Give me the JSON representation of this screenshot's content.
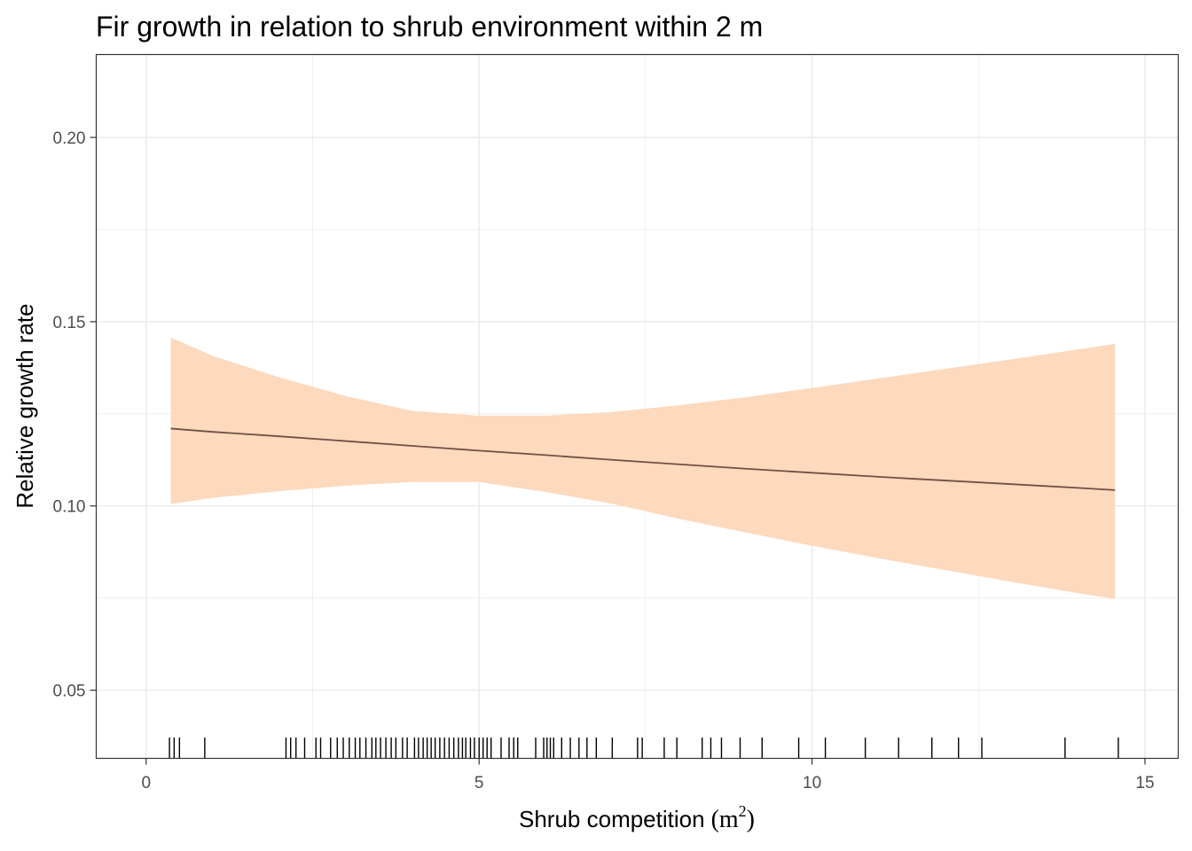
{
  "chart_data": {
    "type": "line",
    "title": "Fir growth in relation to shrub environment within 2 m",
    "xlabel": "Shrub competition",
    "xlabel_unit_open": "(",
    "xlabel_unit_base": "m",
    "xlabel_unit_sup": "2",
    "xlabel_unit_close": ")",
    "ylabel": "Relative growth rate",
    "xlim": [
      -0.75,
      15.5
    ],
    "ylim": [
      0.0315,
      0.2225
    ],
    "x_ticks": [
      0,
      5,
      10,
      15
    ],
    "x_tick_labels": [
      "0",
      "5",
      "10",
      "15"
    ],
    "y_ticks": [
      0.05,
      0.1,
      0.15,
      0.2
    ],
    "y_tick_labels": [
      "0.05",
      "0.10",
      "0.15",
      "0.20"
    ],
    "x_minor": [
      2.5,
      7.5,
      12.5
    ],
    "y_minor": [
      0.075,
      0.125,
      0.175
    ],
    "grid": true,
    "colors": {
      "ribbon": "#fdd9bd",
      "line": "#6e5046",
      "rug": "#000000",
      "grid": "#ebebeb",
      "axis": "#333333"
    },
    "fit": {
      "x": [
        0.37,
        1.0,
        2.0,
        3.0,
        4.0,
        5.0,
        6.0,
        7.0,
        8.0,
        9.0,
        10.0,
        11.0,
        12.0,
        13.0,
        14.0,
        14.55
      ],
      "y": [
        0.121,
        0.1201,
        0.1189,
        0.1176,
        0.1163,
        0.115,
        0.1138,
        0.1125,
        0.1113,
        0.1101,
        0.109,
        0.1079,
        0.1069,
        0.1059,
        0.1049,
        0.1043
      ]
    },
    "ci_upper": {
      "x": [
        0.37,
        1.0,
        2.0,
        3.0,
        4.0,
        5.0,
        6.0,
        7.0,
        8.0,
        9.0,
        10.0,
        11.0,
        12.0,
        13.0,
        14.0,
        14.55
      ],
      "y": [
        0.1457,
        0.1407,
        0.1349,
        0.1298,
        0.1258,
        0.1245,
        0.1245,
        0.1255,
        0.1273,
        0.1295,
        0.132,
        0.1346,
        0.1372,
        0.1398,
        0.1425,
        0.144
      ]
    },
    "ci_lower": {
      "x": [
        0.37,
        1.0,
        2.0,
        3.0,
        4.0,
        5.0,
        6.0,
        7.0,
        8.0,
        9.0,
        10.0,
        11.0,
        12.0,
        13.0,
        14.0,
        14.55
      ],
      "y": [
        0.1005,
        0.1022,
        0.104,
        0.1055,
        0.1065,
        0.1065,
        0.1038,
        0.1006,
        0.0965,
        0.0928,
        0.0892,
        0.0858,
        0.0826,
        0.0794,
        0.0763,
        0.0748
      ]
    },
    "rug": [
      0.35,
      0.42,
      0.5,
      0.88,
      2.1,
      2.17,
      2.25,
      2.38,
      2.55,
      2.62,
      2.77,
      2.87,
      2.96,
      3.05,
      3.14,
      3.21,
      3.3,
      3.39,
      3.45,
      3.52,
      3.6,
      3.68,
      3.75,
      3.85,
      3.92,
      4.03,
      4.09,
      4.16,
      4.22,
      4.28,
      4.34,
      4.41,
      4.48,
      4.55,
      4.62,
      4.69,
      4.75,
      4.8,
      4.87,
      4.93,
      5.0,
      5.06,
      5.12,
      5.18,
      5.33,
      5.45,
      5.52,
      5.58,
      5.85,
      5.97,
      6.02,
      6.07,
      6.12,
      6.24,
      6.37,
      6.5,
      6.62,
      6.76,
      7.0,
      7.38,
      7.45,
      7.78,
      7.97,
      8.35,
      8.48,
      8.64,
      8.92,
      9.25,
      9.8,
      10.2,
      10.8,
      11.3,
      11.8,
      12.2,
      12.55,
      13.8,
      14.6
    ]
  }
}
